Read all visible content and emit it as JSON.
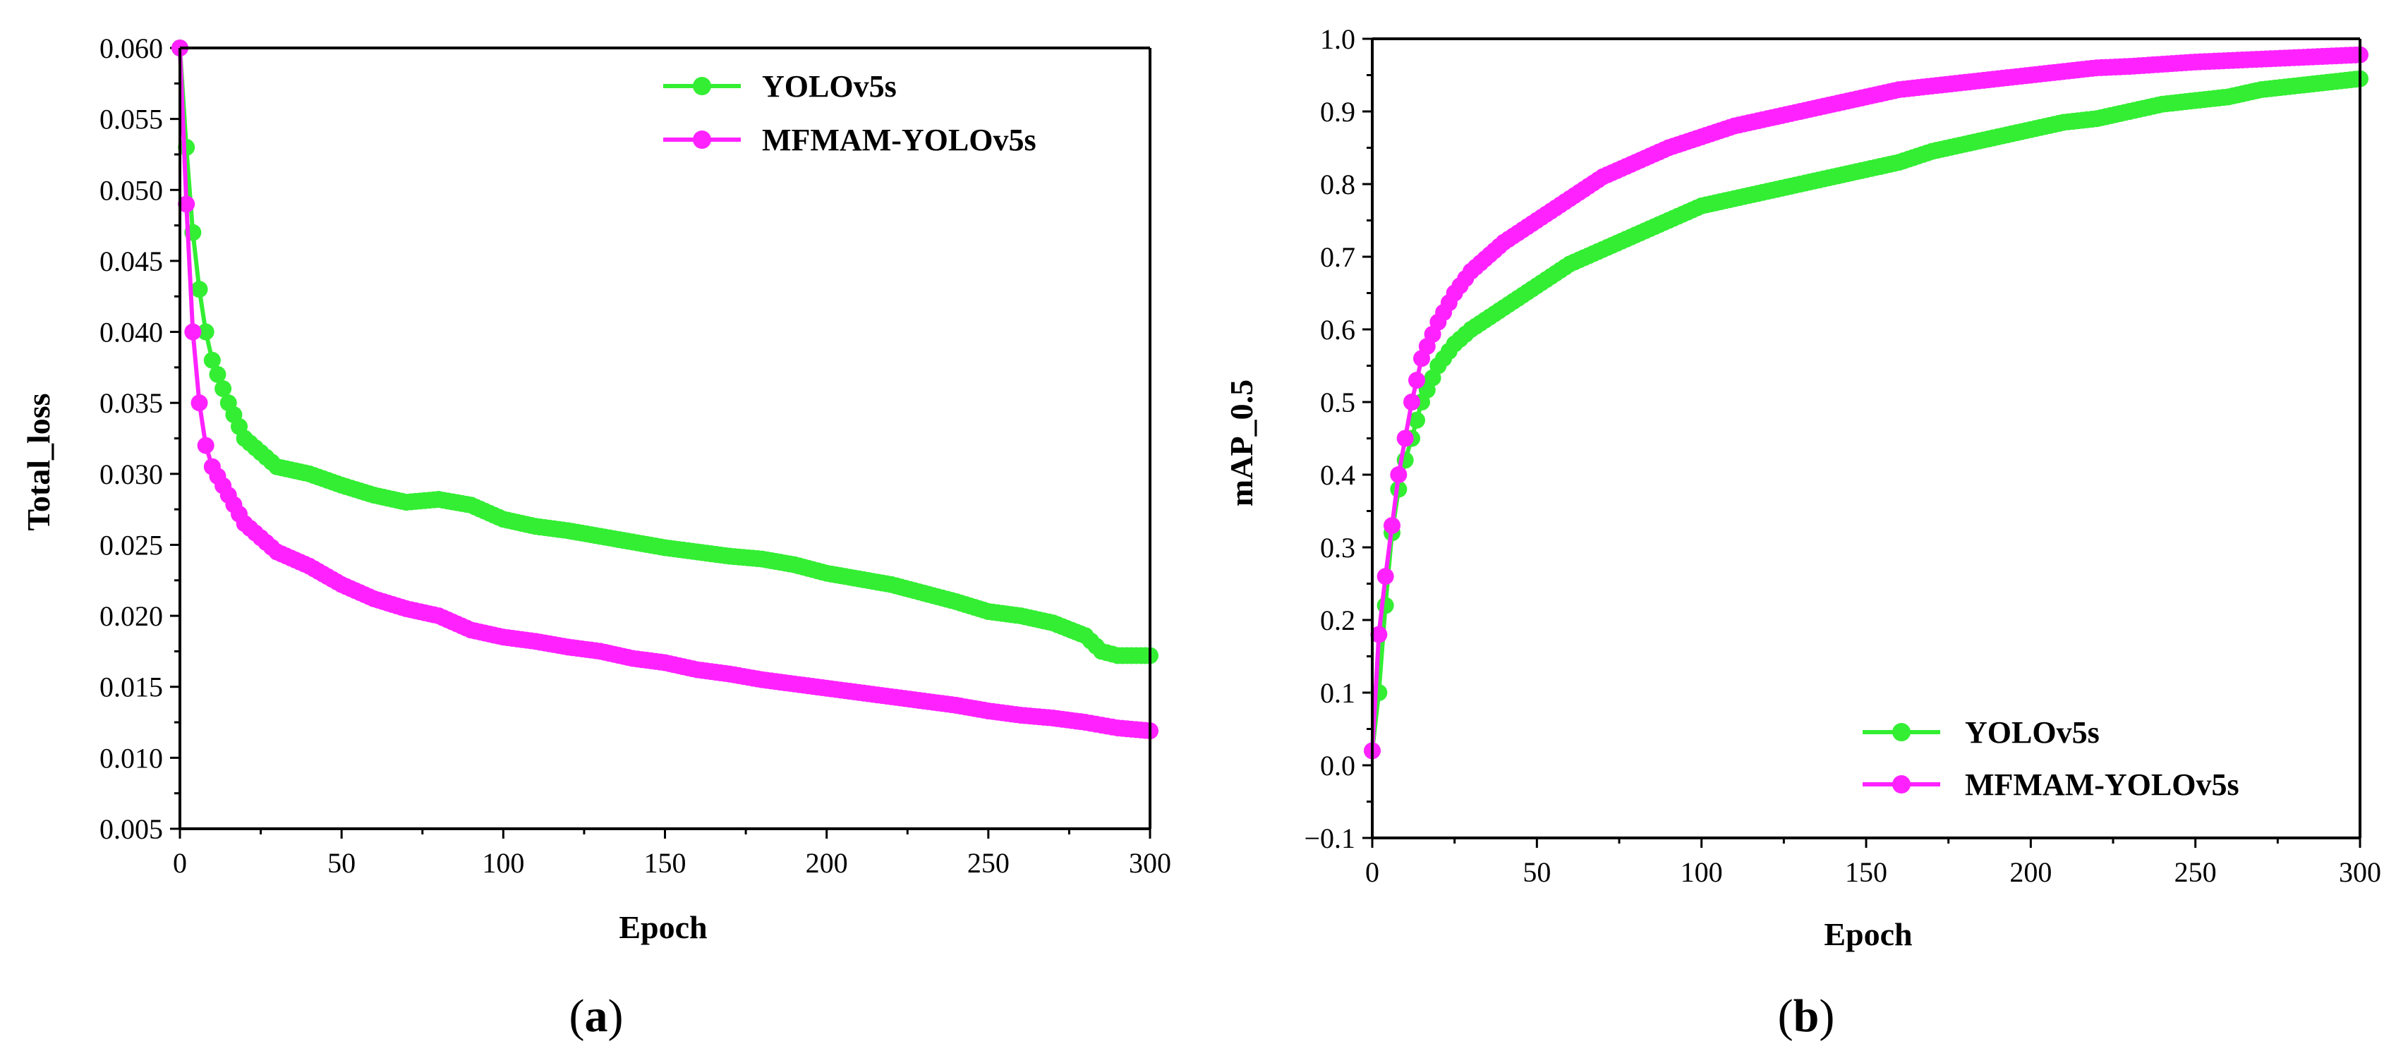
{
  "colors": {
    "yolo": "#33ee33",
    "mfmam": "#ff22ff",
    "axis": "#000000"
  },
  "chart_data": [
    {
      "type": "line",
      "panel_label": "a",
      "xlabel": "Epoch",
      "ylabel": "Total_loss",
      "xlim": [
        0,
        300
      ],
      "ylim": [
        0.005,
        0.06
      ],
      "xticks": [
        0,
        50,
        100,
        150,
        200,
        250,
        300
      ],
      "yticks": [
        "0.005",
        "0.010",
        "0.015",
        "0.020",
        "0.025",
        "0.030",
        "0.035",
        "0.040",
        "0.045",
        "0.050",
        "0.055",
        "0.060"
      ],
      "legend": {
        "position": "top-right"
      },
      "x": [
        0,
        2,
        4,
        6,
        8,
        10,
        15,
        20,
        25,
        30,
        40,
        50,
        60,
        70,
        80,
        90,
        100,
        110,
        120,
        130,
        140,
        150,
        160,
        170,
        180,
        190,
        200,
        210,
        220,
        230,
        240,
        250,
        260,
        270,
        280,
        285,
        290,
        300
      ],
      "series": [
        {
          "name": "YOLOv5s",
          "color_key": "yolo",
          "values": [
            0.06,
            0.053,
            0.047,
            0.043,
            0.04,
            0.038,
            0.035,
            0.0325,
            0.0315,
            0.0305,
            0.03,
            0.0292,
            0.0285,
            0.028,
            0.0282,
            0.0278,
            0.0268,
            0.0263,
            0.026,
            0.0256,
            0.0252,
            0.0248,
            0.0245,
            0.0242,
            0.024,
            0.0236,
            0.023,
            0.0226,
            0.0222,
            0.0216,
            0.021,
            0.0203,
            0.02,
            0.0195,
            0.0186,
            0.0175,
            0.0172,
            0.0172
          ]
        },
        {
          "name": "MFMAM-YOLOv5s",
          "color_key": "mfmam",
          "values": [
            0.06,
            0.049,
            0.04,
            0.035,
            0.032,
            0.0305,
            0.0285,
            0.0265,
            0.0255,
            0.0245,
            0.0235,
            0.0222,
            0.0212,
            0.0205,
            0.02,
            0.019,
            0.0185,
            0.0182,
            0.0178,
            0.0175,
            0.017,
            0.0167,
            0.0162,
            0.0159,
            0.0155,
            0.0152,
            0.0149,
            0.0146,
            0.0143,
            0.014,
            0.0137,
            0.0133,
            0.013,
            0.0128,
            0.0125,
            0.0123,
            0.0121,
            0.0119
          ]
        }
      ]
    },
    {
      "type": "line",
      "panel_label": "b",
      "xlabel": "Epoch",
      "ylabel": "mAP_0.5",
      "xlim": [
        0,
        300
      ],
      "ylim": [
        -0.1,
        1.0
      ],
      "xticks": [
        0,
        50,
        100,
        150,
        200,
        250,
        300
      ],
      "yticks": [
        "−0.1",
        "0.0",
        "0.1",
        "0.2",
        "0.3",
        "0.4",
        "0.5",
        "0.6",
        "0.7",
        "0.8",
        "0.9",
        "1.0"
      ],
      "legend": {
        "position": "bottom-right"
      },
      "x": [
        0,
        2,
        4,
        6,
        8,
        10,
        12,
        15,
        20,
        25,
        30,
        40,
        50,
        60,
        70,
        80,
        90,
        100,
        110,
        120,
        130,
        140,
        150,
        160,
        170,
        180,
        190,
        200,
        210,
        220,
        230,
        240,
        250,
        260,
        270,
        280,
        290,
        300
      ],
      "series": [
        {
          "name": "YOLOv5s",
          "color_key": "yolo",
          "values": [
            0.02,
            0.1,
            0.22,
            0.32,
            0.38,
            0.42,
            0.45,
            0.5,
            0.55,
            0.58,
            0.6,
            0.63,
            0.66,
            0.69,
            0.71,
            0.73,
            0.75,
            0.77,
            0.78,
            0.79,
            0.8,
            0.81,
            0.82,
            0.83,
            0.845,
            0.855,
            0.865,
            0.875,
            0.885,
            0.89,
            0.9,
            0.91,
            0.915,
            0.92,
            0.93,
            0.935,
            0.94,
            0.945
          ]
        },
        {
          "name": "MFMAM-YOLOv5s",
          "color_key": "mfmam",
          "values": [
            0.02,
            0.18,
            0.26,
            0.33,
            0.4,
            0.45,
            0.5,
            0.56,
            0.61,
            0.65,
            0.68,
            0.72,
            0.75,
            0.78,
            0.81,
            0.83,
            0.85,
            0.865,
            0.88,
            0.89,
            0.9,
            0.91,
            0.92,
            0.93,
            0.935,
            0.94,
            0.945,
            0.95,
            0.955,
            0.96,
            0.962,
            0.965,
            0.968,
            0.97,
            0.972,
            0.974,
            0.976,
            0.978
          ]
        }
      ]
    }
  ]
}
